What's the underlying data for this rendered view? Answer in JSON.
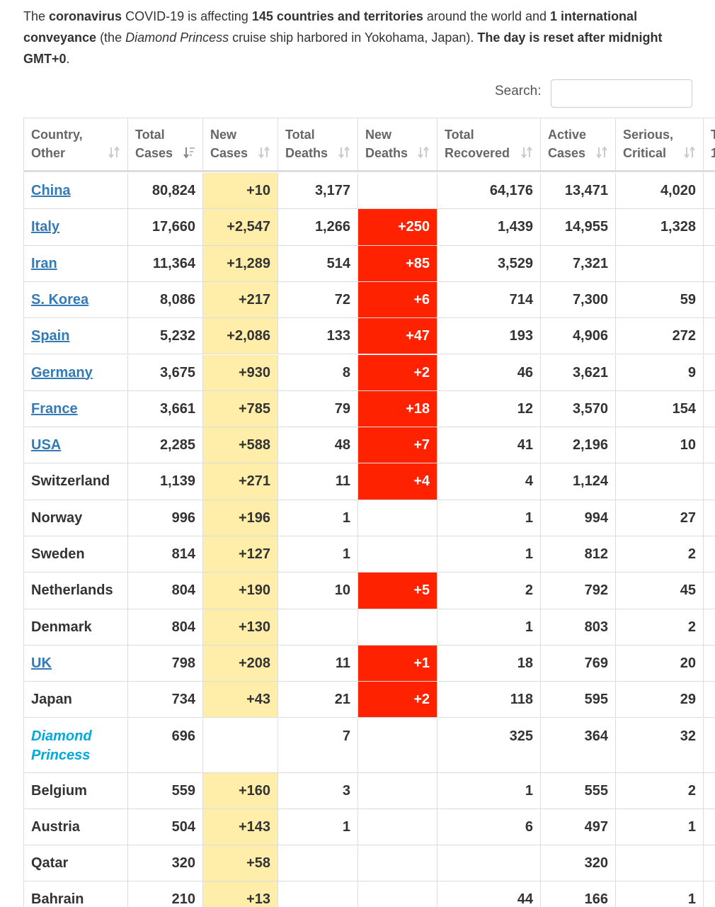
{
  "intro": {
    "segments": [
      {
        "text": "The ",
        "bold": false,
        "italic": false
      },
      {
        "text": "coronavirus",
        "bold": true,
        "italic": false
      },
      {
        "text": " COVID-19 is affecting ",
        "bold": false,
        "italic": false
      },
      {
        "text": "145 countries and territories",
        "bold": true,
        "italic": false
      },
      {
        "text": " around the world and ",
        "bold": false,
        "italic": false
      },
      {
        "text": "1 international conveyance",
        "bold": true,
        "italic": false
      },
      {
        "text": " (the ",
        "bold": false,
        "italic": false
      },
      {
        "text": "Diamond Princess",
        "bold": false,
        "italic": true
      },
      {
        "text": " cruise ship harbored in Yokohama, Japan). ",
        "bold": false,
        "italic": false
      },
      {
        "text": "The day is reset after midnight GMT+0",
        "bold": true,
        "italic": false
      },
      {
        "text": ".",
        "bold": false,
        "italic": false
      }
    ]
  },
  "search": {
    "label": "Search:"
  },
  "table": {
    "columns": [
      {
        "lines": [
          "Country,",
          "Other"
        ],
        "sorted": false
      },
      {
        "lines": [
          "Total",
          "Cases"
        ],
        "sorted": true
      },
      {
        "lines": [
          "New",
          "Cases"
        ],
        "sorted": false
      },
      {
        "lines": [
          "Total",
          "Deaths"
        ],
        "sorted": false
      },
      {
        "lines": [
          "New",
          "Deaths"
        ],
        "sorted": false
      },
      {
        "lines": [
          "Total",
          "Recovered"
        ],
        "sorted": false
      },
      {
        "lines": [
          "Active",
          "Cases"
        ],
        "sorted": false
      },
      {
        "lines": [
          "Serious,",
          "Critical"
        ],
        "sorted": false
      },
      {
        "lines": [
          "T",
          "1"
        ],
        "sorted": false
      }
    ],
    "rows": [
      {
        "country": "China",
        "link": true,
        "cells": [
          "80,824",
          "+10",
          "3,177",
          null,
          "64,176",
          "13,471",
          "4,020"
        ]
      },
      {
        "country": "Italy",
        "link": true,
        "cells": [
          "17,660",
          "+2,547",
          "1,266",
          "+250",
          "1,439",
          "14,955",
          "1,328"
        ]
      },
      {
        "country": "Iran",
        "link": true,
        "cells": [
          "11,364",
          "+1,289",
          "514",
          "+85",
          "3,529",
          "7,321",
          null
        ]
      },
      {
        "country": "S. Korea",
        "link": true,
        "cells": [
          "8,086",
          "+217",
          "72",
          "+6",
          "714",
          "7,300",
          "59"
        ]
      },
      {
        "country": "Spain",
        "link": true,
        "cells": [
          "5,232",
          "+2,086",
          "133",
          "+47",
          "193",
          "4,906",
          "272"
        ]
      },
      {
        "country": "Germany",
        "link": true,
        "cells": [
          "3,675",
          "+930",
          "8",
          "+2",
          "46",
          "3,621",
          "9"
        ]
      },
      {
        "country": "France",
        "link": true,
        "cells": [
          "3,661",
          "+785",
          "79",
          "+18",
          "12",
          "3,570",
          "154"
        ]
      },
      {
        "country": "USA",
        "link": true,
        "cells": [
          "2,285",
          "+588",
          "48",
          "+7",
          "41",
          "2,196",
          "10"
        ]
      },
      {
        "country": "Switzerland",
        "link": false,
        "cells": [
          "1,139",
          "+271",
          "11",
          "+4",
          "4",
          "1,124",
          null
        ]
      },
      {
        "country": "Norway",
        "link": false,
        "cells": [
          "996",
          "+196",
          "1",
          null,
          "1",
          "994",
          "27"
        ]
      },
      {
        "country": "Sweden",
        "link": false,
        "cells": [
          "814",
          "+127",
          "1",
          null,
          "1",
          "812",
          "2"
        ]
      },
      {
        "country": "Netherlands",
        "link": false,
        "cells": [
          "804",
          "+190",
          "10",
          "+5",
          "2",
          "792",
          "45"
        ]
      },
      {
        "country": "Denmark",
        "link": false,
        "cells": [
          "804",
          "+130",
          null,
          null,
          "1",
          "803",
          "2"
        ]
      },
      {
        "country": "UK",
        "link": true,
        "cells": [
          "798",
          "+208",
          "11",
          "+1",
          "18",
          "769",
          "20"
        ]
      },
      {
        "country": "Japan",
        "link": false,
        "cells": [
          "734",
          "+43",
          "21",
          "+2",
          "118",
          "595",
          "29"
        ]
      },
      {
        "country": [
          "Diamond",
          "Princess"
        ],
        "link": false,
        "conveyance": true,
        "cells": [
          "696",
          null,
          "7",
          null,
          "325",
          "364",
          "32"
        ]
      },
      {
        "country": "Belgium",
        "link": false,
        "cells": [
          "559",
          "+160",
          "3",
          null,
          "1",
          "555",
          "2"
        ]
      },
      {
        "country": "Austria",
        "link": false,
        "cells": [
          "504",
          "+143",
          "1",
          null,
          "6",
          "497",
          "1"
        ]
      },
      {
        "country": "Qatar",
        "link": false,
        "cells": [
          "320",
          "+58",
          null,
          null,
          null,
          "320",
          null
        ]
      },
      {
        "country": "Bahrain",
        "link": false,
        "cells": [
          "210",
          "+13",
          null,
          null,
          "44",
          "166",
          "1"
        ]
      }
    ]
  }
}
